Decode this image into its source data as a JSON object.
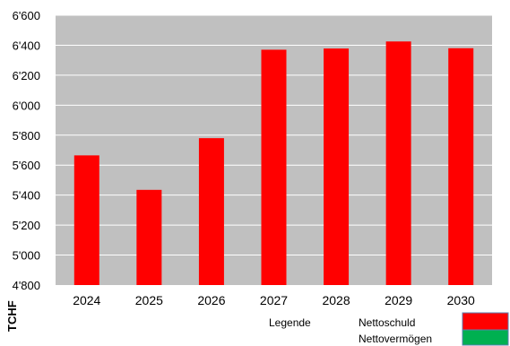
{
  "chart_data": {
    "type": "bar",
    "categories": [
      "2024",
      "2025",
      "2026",
      "2027",
      "2028",
      "2029",
      "2030"
    ],
    "series": [
      {
        "name": "Nettoschuld",
        "values": [
          5665,
          5435,
          5780,
          6370,
          6378,
          6425,
          6380
        ]
      }
    ],
    "ylim": [
      4800,
      6600
    ],
    "y_ticks": [
      4800,
      5000,
      5200,
      5400,
      5600,
      5800,
      6000,
      6200,
      6400,
      6600
    ],
    "y_tick_labels": [
      "4'800",
      "5'000",
      "5'200",
      "5'400",
      "5'600",
      "5'800",
      "6'000",
      "6'200",
      "6'400",
      "6'600"
    ],
    "ylabel": "TCHF",
    "grid": true,
    "legend": {
      "title": "Legende",
      "entries": [
        {
          "label": "Nettoschuld",
          "color": "#ff0000"
        },
        {
          "label": "Nettovermögen",
          "color": "#00b050"
        }
      ],
      "placement": "bottom-right"
    },
    "colors": {
      "bar": "#ff0000",
      "plot_background": "#c0c0c0",
      "gridline": "#ffffff"
    }
  }
}
